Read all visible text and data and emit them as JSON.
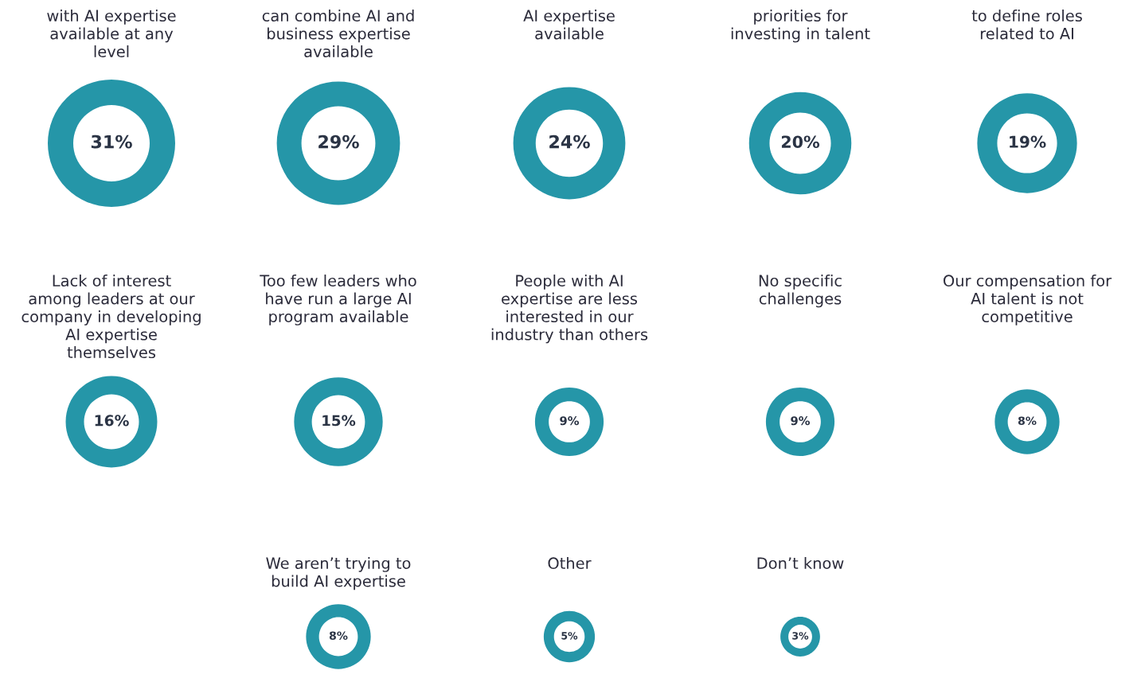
{
  "chart_data": {
    "type": "other",
    "categories": [
      "with AI expertise available at any level",
      "can combine AI and business expertise available",
      "AI expertise available",
      "priorities for investing in talent",
      "to define roles related to AI",
      "Lack of interest among leaders at our company in developing AI expertise themselves",
      "Too few leaders who have run a large AI program available",
      "People with AI expertise are less interested in our industry than others",
      "No specific challenges",
      "Our compensation for AI talent is not competitive",
      "We aren’t trying to build AI expertise",
      "Other",
      "Don’t know"
    ],
    "values": [
      31,
      29,
      24,
      20,
      19,
      16,
      15,
      9,
      9,
      8,
      8,
      5,
      3
    ],
    "value_labels": [
      "31%",
      "29%",
      "24%",
      "20%",
      "19%",
      "16%",
      "15%",
      "9%",
      "9%",
      "8%",
      "8%",
      "5%",
      "3%"
    ],
    "color": "#2596a8"
  }
}
